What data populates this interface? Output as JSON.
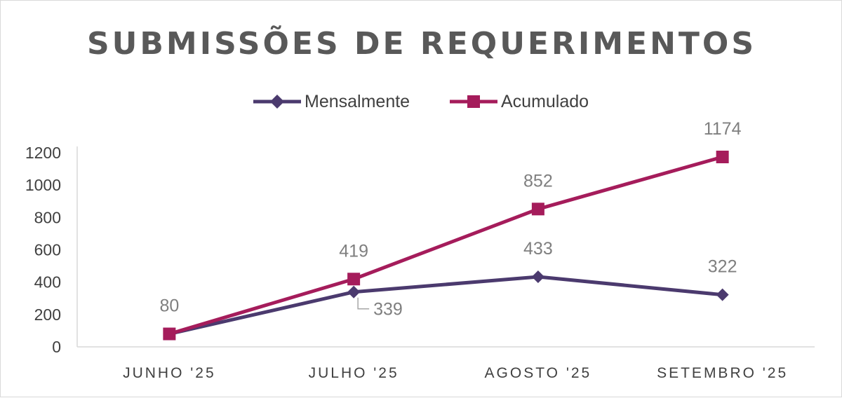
{
  "chart_data": {
    "type": "line",
    "title": "SUBMISSÕES DE REQUERIMENTOS",
    "categories": [
      "JUNHO '25",
      "JULHO '25",
      "AGOSTO '25",
      "SETEMBRO '25"
    ],
    "ylim": [
      0,
      1200
    ],
    "yticks": [
      "0",
      "200",
      "400",
      "600",
      "800",
      "1000",
      "1200"
    ],
    "grid": false,
    "legend_position": "top",
    "series": [
      {
        "name": "Mensalmente",
        "values": [
          80,
          339,
          433,
          322
        ],
        "labels": [
          "",
          "339",
          "433",
          "322"
        ],
        "color": "#4b3a6e",
        "marker": "diamond"
      },
      {
        "name": "Acumulado",
        "values": [
          80,
          419,
          852,
          1174
        ],
        "labels": [
          "80",
          "419",
          "852",
          "1174"
        ],
        "color": "#a51c5b",
        "marker": "square"
      }
    ]
  }
}
